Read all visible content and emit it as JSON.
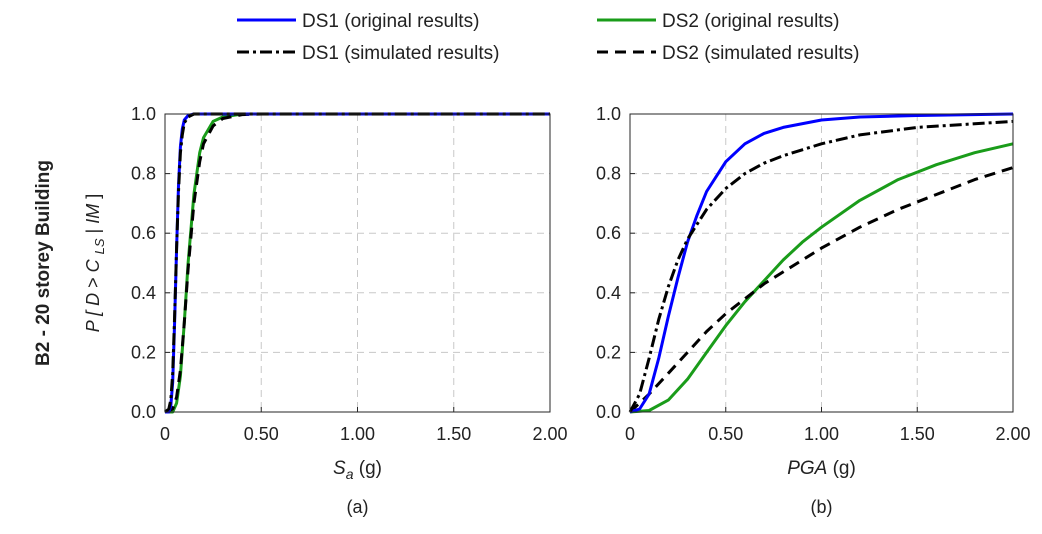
{
  "figure": {
    "row_label": "B2 - 20 storey Building",
    "y_axis_label_parts": [
      "P [ ",
      "D",
      " > ",
      "C",
      "LS",
      " | ",
      "IM",
      " ]"
    ]
  },
  "legend": {
    "entries": [
      {
        "label": "DS1 (original results)",
        "color": "#0000ff",
        "style": "solid"
      },
      {
        "label": "DS2 (original results)",
        "color": "#1a9c1a",
        "style": "solid"
      },
      {
        "label": "DS1 (simulated results)",
        "color": "#000000",
        "style": "dashdot"
      },
      {
        "label": "DS2 (simulated results)",
        "color": "#000000",
        "style": "dashed"
      }
    ]
  },
  "chart_data": [
    {
      "type": "line",
      "panel_label": "(a)",
      "xlabel_main": "S",
      "xlabel_sub": "a",
      "xlabel_unit": "(g)",
      "xlim": [
        0,
        2
      ],
      "ylim": [
        0,
        1
      ],
      "xticks": [
        0,
        0.5,
        1,
        1.5,
        2
      ],
      "xtick_labels": [
        "0",
        "0.50",
        "1.00",
        "1.50",
        "2.00"
      ],
      "yticks": [
        0,
        0.2,
        0.4,
        0.6,
        0.8,
        1.0
      ],
      "ytick_labels": [
        "0.0",
        "0.2",
        "0.4",
        "0.6",
        "0.8",
        "1.0"
      ],
      "grid": true,
      "series": [
        {
          "name": "DS1 (original results)",
          "color": "#0000ff",
          "style": "solid",
          "x": [
            0,
            0.02,
            0.03,
            0.04,
            0.05,
            0.06,
            0.07,
            0.08,
            0.09,
            0.1,
            0.12,
            0.15,
            0.2,
            0.3,
            2.0
          ],
          "y": [
            0,
            0.0,
            0.02,
            0.1,
            0.3,
            0.55,
            0.76,
            0.89,
            0.95,
            0.98,
            0.995,
            1.0,
            1.0,
            1.0,
            1.0
          ]
        },
        {
          "name": "DS1 (simulated results)",
          "color": "#000000",
          "style": "dashdot",
          "x": [
            0,
            0.02,
            0.03,
            0.04,
            0.05,
            0.06,
            0.07,
            0.08,
            0.09,
            0.1,
            0.12,
            0.15,
            0.2,
            0.3,
            2.0
          ],
          "y": [
            0,
            0.01,
            0.04,
            0.13,
            0.32,
            0.55,
            0.74,
            0.87,
            0.93,
            0.97,
            0.99,
            1.0,
            1.0,
            1.0,
            1.0
          ]
        },
        {
          "name": "DS2 (original results)",
          "color": "#1a9c1a",
          "style": "solid",
          "x": [
            0,
            0.04,
            0.06,
            0.08,
            0.1,
            0.12,
            0.15,
            0.18,
            0.2,
            0.25,
            0.3,
            0.4,
            0.5,
            2.0
          ],
          "y": [
            0,
            0.0,
            0.03,
            0.12,
            0.3,
            0.5,
            0.73,
            0.87,
            0.92,
            0.975,
            0.99,
            1.0,
            1.0,
            1.0
          ]
        },
        {
          "name": "DS2 (simulated results)",
          "color": "#000000",
          "style": "dashed",
          "x": [
            0,
            0.04,
            0.06,
            0.08,
            0.1,
            0.12,
            0.15,
            0.18,
            0.2,
            0.25,
            0.3,
            0.4,
            0.5,
            2.0
          ],
          "y": [
            0,
            0.01,
            0.05,
            0.14,
            0.3,
            0.48,
            0.7,
            0.84,
            0.9,
            0.96,
            0.985,
            0.998,
            1.0,
            1.0
          ]
        }
      ]
    },
    {
      "type": "line",
      "panel_label": "(b)",
      "xlabel_main": "PGA",
      "xlabel_sub": "",
      "xlabel_unit": " (g)",
      "xlim": [
        0,
        2
      ],
      "ylim": [
        0,
        1
      ],
      "xticks": [
        0,
        0.5,
        1,
        1.5,
        2
      ],
      "xtick_labels": [
        "0",
        "0.50",
        "1.00",
        "1.50",
        "2.00"
      ],
      "yticks": [
        0,
        0.2,
        0.4,
        0.6,
        0.8,
        1.0
      ],
      "ytick_labels": [
        "0.0",
        "0.2",
        "0.4",
        "0.6",
        "0.8",
        "1.0"
      ],
      "grid": true,
      "series": [
        {
          "name": "DS1 (original results)",
          "color": "#0000ff",
          "style": "solid",
          "x": [
            0,
            0.05,
            0.1,
            0.15,
            0.2,
            0.25,
            0.3,
            0.35,
            0.4,
            0.5,
            0.6,
            0.7,
            0.8,
            1.0,
            1.2,
            1.5,
            2.0
          ],
          "y": [
            0,
            0.01,
            0.06,
            0.18,
            0.32,
            0.45,
            0.57,
            0.66,
            0.74,
            0.84,
            0.9,
            0.935,
            0.955,
            0.98,
            0.99,
            0.995,
            1.0
          ]
        },
        {
          "name": "DS1 (simulated results)",
          "color": "#000000",
          "style": "dashdot",
          "x": [
            0,
            0.05,
            0.1,
            0.15,
            0.2,
            0.25,
            0.3,
            0.4,
            0.5,
            0.6,
            0.7,
            0.8,
            1.0,
            1.2,
            1.5,
            2.0
          ],
          "y": [
            0,
            0.06,
            0.18,
            0.31,
            0.42,
            0.51,
            0.58,
            0.68,
            0.75,
            0.8,
            0.835,
            0.86,
            0.9,
            0.93,
            0.955,
            0.975
          ]
        },
        {
          "name": "DS2 (original results)",
          "color": "#1a9c1a",
          "style": "solid",
          "x": [
            0,
            0.1,
            0.2,
            0.3,
            0.4,
            0.5,
            0.6,
            0.7,
            0.8,
            0.9,
            1.0,
            1.2,
            1.4,
            1.6,
            1.8,
            2.0
          ],
          "y": [
            0,
            0.005,
            0.04,
            0.11,
            0.2,
            0.29,
            0.37,
            0.44,
            0.51,
            0.57,
            0.62,
            0.71,
            0.78,
            0.83,
            0.87,
            0.9
          ]
        },
        {
          "name": "DS2 (simulated results)",
          "color": "#000000",
          "style": "dashed",
          "x": [
            0,
            0.1,
            0.2,
            0.3,
            0.4,
            0.5,
            0.6,
            0.7,
            0.8,
            1.0,
            1.2,
            1.4,
            1.6,
            1.8,
            2.0
          ],
          "y": [
            0,
            0.06,
            0.13,
            0.2,
            0.27,
            0.33,
            0.38,
            0.43,
            0.47,
            0.55,
            0.62,
            0.68,
            0.73,
            0.78,
            0.82
          ]
        }
      ]
    }
  ]
}
